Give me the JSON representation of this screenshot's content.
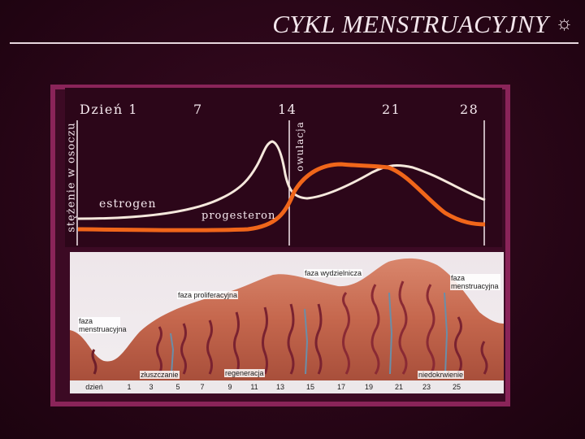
{
  "title": "CYKL MENSTRUACYJNY",
  "title_icon": "sun-gear-icon",
  "chart": {
    "days": [
      "Dzień  1",
      "7",
      "14",
      "21",
      "28"
    ],
    "ylabel": "stężenie w osoczu",
    "ovulation_label": "owulacja",
    "estrogen_label": "estrogen",
    "progesteron_label": "progesteron",
    "colors": {
      "estrogen": "#f5e8dc",
      "progesteron": "#f0661a",
      "axis": "#f5e8ee",
      "frame": "#8a2459"
    }
  },
  "endometrium": {
    "phases": [
      "faza wydzielnicza",
      "faza proliferacyjna",
      "faza menstruacyjna",
      "faza menstruacyjna"
    ],
    "processes": [
      "złuszczanie",
      "regeneracja",
      "niedokrwienie"
    ],
    "day_axis_label": "dzień",
    "day_ticks": [
      "1",
      "3",
      "5",
      "7",
      "9",
      "11",
      "13",
      "15",
      "17",
      "19",
      "21",
      "23",
      "25"
    ]
  }
}
